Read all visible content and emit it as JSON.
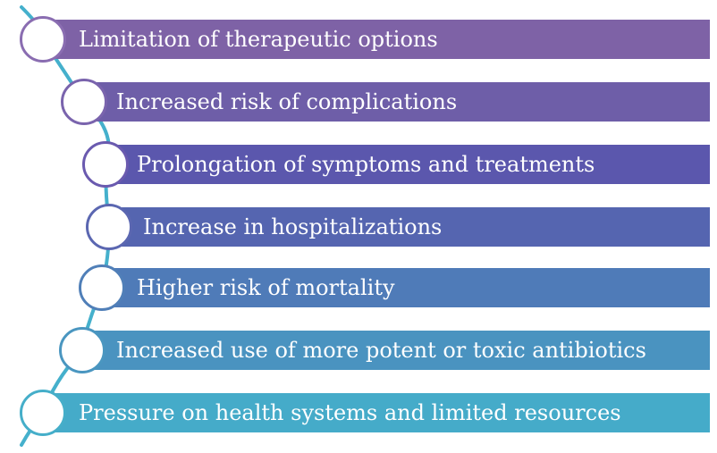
{
  "items": [
    {
      "label": "Limitation of therapeutic options",
      "color": "#7e62a6",
      "ring": "#8a6db1"
    },
    {
      "label": "Increased risk of complications",
      "color": "#6e5ea8",
      "ring": "#7a64ad"
    },
    {
      "label": "Prolongation of symptoms and treatments",
      "color": "#5b57ad",
      "ring": "#6a5aaf"
    },
    {
      "label": "Increase in hospitalizations",
      "color": "#5565b0",
      "ring": "#5b67b1"
    },
    {
      "label": "Higher risk of mortality",
      "color": "#4f7bb8",
      "ring": "#507fb8"
    },
    {
      "label": "Increased use of more potent or toxic antibiotics",
      "color": "#4a93c0",
      "ring": "#4a96c0"
    },
    {
      "label": "Pressure on health systems and limited resources",
      "color": "#45abc9",
      "ring": "#45aec9"
    }
  ],
  "spine_color": "#45b0cc"
}
